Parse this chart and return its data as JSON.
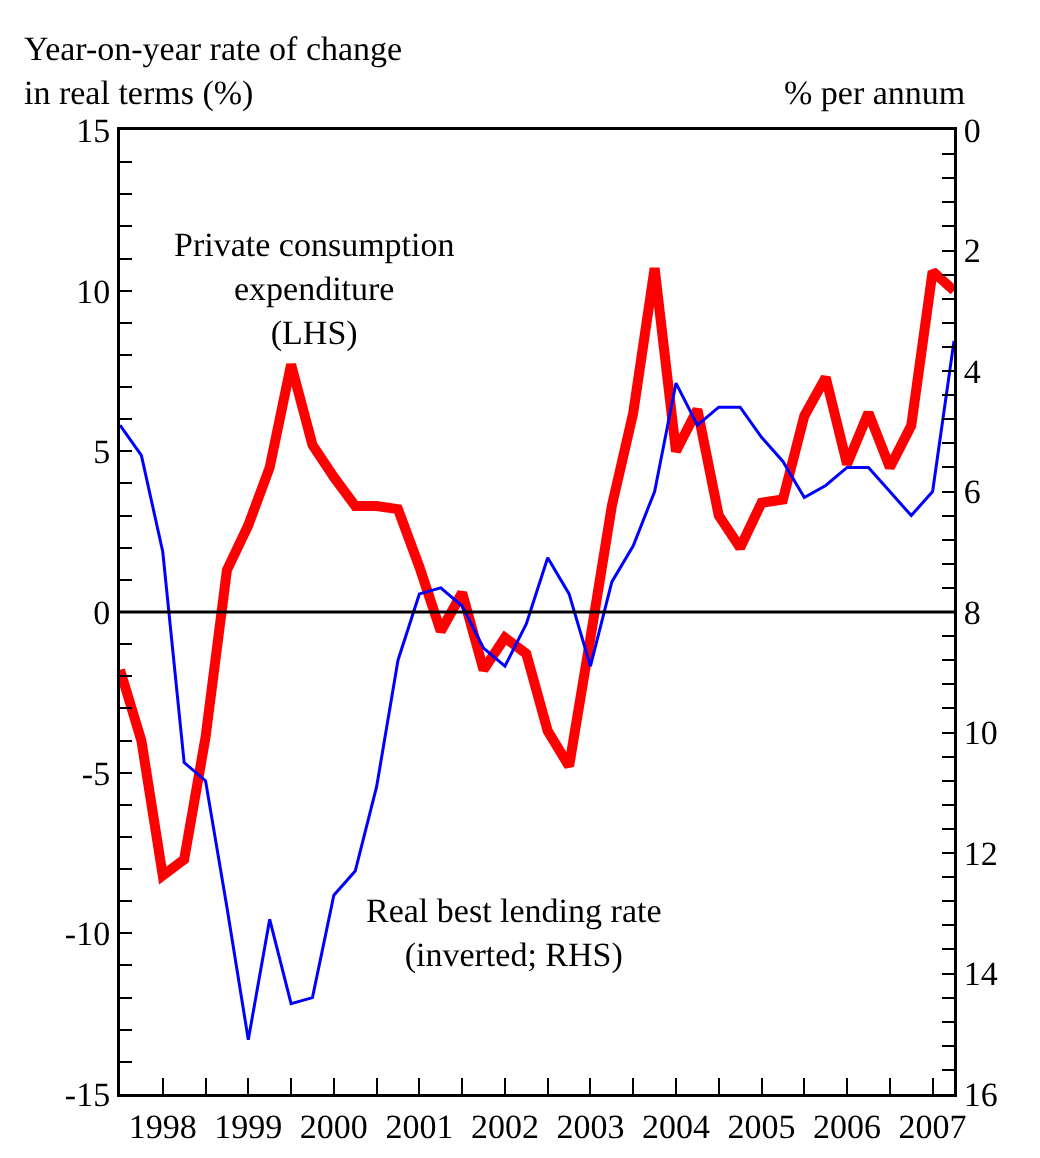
{
  "chart_data": {
    "type": "line",
    "ylabel": "Year-on-year rate of change\nin real terms (%)",
    "y2label": "% per annum",
    "x": [
      1998,
      1998.25,
      1998.5,
      1998.75,
      1999,
      1999.25,
      1999.5,
      1999.75,
      2000,
      2000.25,
      2000.5,
      2000.75,
      2001,
      2001.25,
      2001.5,
      2001.75,
      2002,
      2002.25,
      2002.5,
      2002.75,
      2003,
      2003.25,
      2003.5,
      2003.75,
      2004,
      2004.25,
      2004.5,
      2004.75,
      2005,
      2005.25,
      2005.5,
      2005.75,
      2006,
      2006.25,
      2006.5,
      2006.75,
      2007,
      2007.25,
      2007.5,
      2007.75
    ],
    "series": [
      {
        "name": "Private consumption\nexpenditure\n(LHS)",
        "color": "#ff0000",
        "values": [
          -1.8,
          -4.0,
          -8.2,
          -7.7,
          -3.9,
          1.3,
          2.7,
          4.5,
          7.7,
          5.2,
          4.2,
          3.3,
          3.3,
          3.2,
          1.4,
          -0.6,
          0.6,
          -1.8,
          -0.8,
          -1.3,
          -3.7,
          -4.8,
          -0.8,
          3.3,
          6.2,
          10.7,
          5.0,
          6.3,
          3.0,
          2.0,
          3.4,
          3.5,
          6.1,
          7.3,
          4.6,
          6.2,
          4.5,
          5.8,
          10.6,
          10.0
        ]
      },
      {
        "name": "Real best lending rate\n(inverted; RHS)",
        "color": "#0000ff",
        "axis": "y2",
        "values": [
          4.9,
          5.4,
          7.0,
          10.5,
          10.8,
          12.9,
          15.1,
          13.1,
          14.5,
          14.4,
          12.7,
          12.3,
          10.9,
          8.8,
          7.7,
          7.6,
          7.9,
          8.6,
          8.9,
          8.2,
          7.1,
          7.7,
          8.9,
          7.5,
          6.9,
          6.0,
          4.2,
          4.9,
          4.6,
          4.6,
          5.1,
          5.5,
          6.1,
          5.9,
          5.6,
          5.6,
          6.0,
          6.4,
          6.0,
          3.5
        ]
      }
    ],
    "xlim": [
      1998,
      2007.75
    ],
    "xticks": [
      {
        "value": 1998,
        "label": null
      },
      {
        "value": 1998.5,
        "label": "1998"
      },
      {
        "value": 1999,
        "label": null
      },
      {
        "value": 1999.5,
        "label": "1999"
      },
      {
        "value": 2000,
        "label": null
      },
      {
        "value": 2000.5,
        "label": "2000"
      },
      {
        "value": 2001,
        "label": null
      },
      {
        "value": 2001.5,
        "label": "2001"
      },
      {
        "value": 2002,
        "label": null
      },
      {
        "value": 2002.5,
        "label": "2002"
      },
      {
        "value": 2003,
        "label": null
      },
      {
        "value": 2003.5,
        "label": "2003"
      },
      {
        "value": 2004,
        "label": null
      },
      {
        "value": 2004.5,
        "label": "2004"
      },
      {
        "value": 2005,
        "label": null
      },
      {
        "value": 2005.5,
        "label": "2005"
      },
      {
        "value": 2006,
        "label": null
      },
      {
        "value": 2006.5,
        "label": "2006"
      },
      {
        "value": 2007,
        "label": null
      },
      {
        "value": 2007.5,
        "label": "2007"
      }
    ],
    "ylim": [
      -15,
      15
    ],
    "yticks": [
      -15,
      {
        "value": -14,
        "label": null
      },
      {
        "value": -13,
        "label": null
      },
      {
        "value": -12,
        "label": null
      },
      {
        "value": -11,
        "label": null
      },
      -10,
      {
        "value": -9,
        "label": null
      },
      {
        "value": -8,
        "label": null
      },
      {
        "value": -7,
        "label": null
      },
      {
        "value": -6,
        "label": null
      },
      -5,
      {
        "value": -4,
        "label": null
      },
      {
        "value": -3,
        "label": null
      },
      {
        "value": -2,
        "label": null
      },
      {
        "value": -1,
        "label": null
      },
      0,
      {
        "value": 1,
        "label": null
      },
      {
        "value": 2,
        "label": null
      },
      {
        "value": 3,
        "label": null
      },
      {
        "value": 4,
        "label": null
      },
      5,
      {
        "value": 6,
        "label": null
      },
      {
        "value": 7,
        "label": null
      },
      {
        "value": 8,
        "label": null
      },
      {
        "value": 9,
        "label": null
      },
      10,
      {
        "value": 11,
        "label": null
      },
      {
        "value": 12,
        "label": null
      },
      {
        "value": 13,
        "label": null
      },
      {
        "value": 14,
        "label": null
      },
      15
    ],
    "y2lim": [
      16,
      0
    ],
    "y2ticks": [
      0,
      {
        "value": 0.4,
        "label": null
      },
      {
        "value": 0.8,
        "label": null
      },
      {
        "value": 1.2,
        "label": null
      },
      {
        "value": 1.6,
        "label": null
      },
      2,
      {
        "value": 2.4,
        "label": null
      },
      {
        "value": 2.8,
        "label": null
      },
      {
        "value": 3.2,
        "label": null
      },
      {
        "value": 3.6,
        "label": null
      },
      4,
      {
        "value": 4.4,
        "label": null
      },
      {
        "value": 4.8,
        "label": null
      },
      {
        "value": 5.2,
        "label": null
      },
      {
        "value": 5.6,
        "label": null
      },
      6,
      {
        "value": 6.4,
        "label": null
      },
      {
        "value": 6.8,
        "label": null
      },
      {
        "value": 7.2,
        "label": null
      },
      {
        "value": 7.6,
        "label": null
      },
      8,
      {
        "value": 8.4,
        "label": null
      },
      {
        "value": 8.8,
        "label": null
      },
      {
        "value": 9.2,
        "label": null
      },
      {
        "value": 9.6,
        "label": null
      },
      10,
      {
        "value": 10.4,
        "label": null
      },
      {
        "value": 10.8,
        "label": null
      },
      {
        "value": 11.2,
        "label": null
      },
      {
        "value": 11.6,
        "label": null
      },
      12,
      {
        "value": 12.4,
        "label": null
      },
      {
        "value": 12.8,
        "label": null
      },
      {
        "value": 13.2,
        "label": null
      },
      {
        "value": 13.6,
        "label": null
      },
      14,
      {
        "value": 14.4,
        "label": null
      },
      {
        "value": 14.8,
        "label": null
      },
      {
        "value": 15.2,
        "label": null
      },
      {
        "value": 15.6,
        "label": null
      },
      16
    ],
    "ref_lines": [
      {
        "axis": "y",
        "value": 0,
        "color": "#000000"
      }
    ],
    "grid": false,
    "legend": false,
    "marker": "none",
    "line_style": "solid"
  }
}
